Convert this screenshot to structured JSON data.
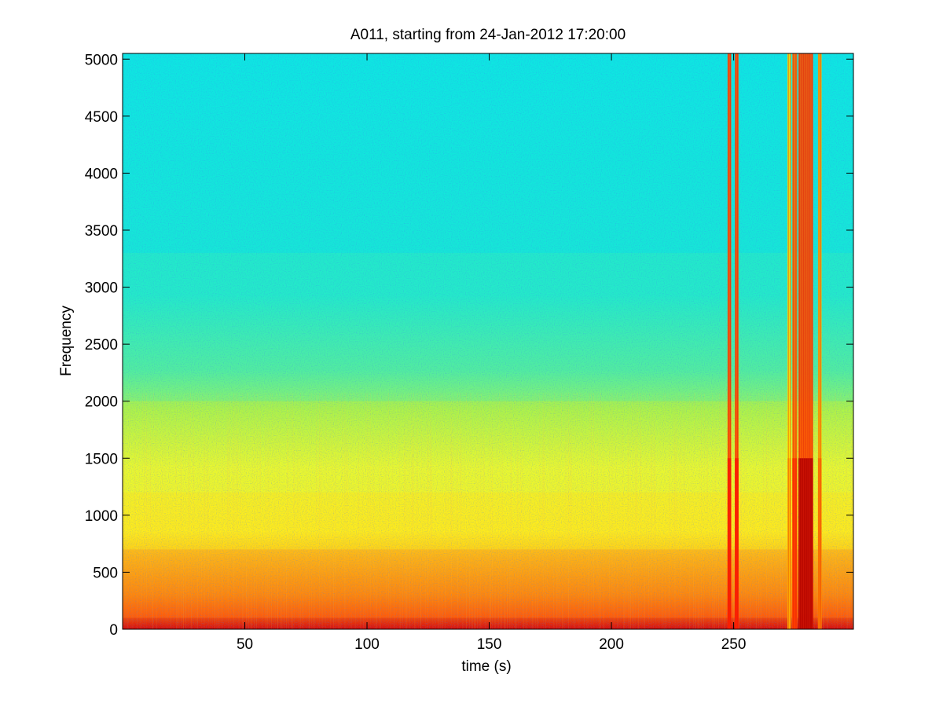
{
  "chart_data": {
    "type": "heatmap",
    "title": "A011, starting from 24-Jan-2012 17:20:00",
    "xlabel": "time (s)",
    "ylabel": "Frequency",
    "xlim": [
      0,
      299
    ],
    "ylim": [
      0,
      5050
    ],
    "xticks": [
      50,
      100,
      150,
      200,
      250
    ],
    "yticks": [
      0,
      500,
      1000,
      1500,
      2000,
      2500,
      3000,
      3500,
      4000,
      4500,
      5000
    ],
    "colormap": "jet",
    "colors": {
      "high_band": "#19e6d6",
      "mid_band": "#ffff33",
      "low_band": "#ff7a0a",
      "peak": "#e01010"
    },
    "description_bands": [
      {
        "freq_from": 0,
        "freq_to": 100,
        "level": 0.95
      },
      {
        "freq_from": 100,
        "freq_to": 700,
        "level": 0.78
      },
      {
        "freq_from": 700,
        "freq_to": 1200,
        "level": 0.66
      },
      {
        "freq_from": 1200,
        "freq_to": 2000,
        "level": 0.58
      },
      {
        "freq_from": 2000,
        "freq_to": 3300,
        "level": 0.44
      },
      {
        "freq_from": 3300,
        "freq_to": 5050,
        "level": 0.36
      }
    ],
    "broadband_events": [
      {
        "time_from": 247.5,
        "time_to": 249.0,
        "level": 0.85
      },
      {
        "time_from": 250.5,
        "time_to": 252.0,
        "level": 0.85
      },
      {
        "time_from": 272.0,
        "time_to": 273.5,
        "level": 0.7
      },
      {
        "time_from": 274.0,
        "time_to": 276.0,
        "level": 0.82
      },
      {
        "time_from": 276.5,
        "time_to": 282.5,
        "level": 0.95
      },
      {
        "time_from": 284.5,
        "time_to": 286.0,
        "level": 0.75
      }
    ]
  }
}
